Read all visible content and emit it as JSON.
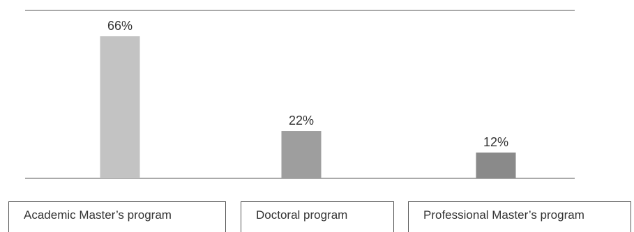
{
  "chart_data": {
    "type": "bar",
    "categories": [
      "Academic Master’s program",
      "Doctoral program",
      "Professional Master’s program"
    ],
    "values": [
      66,
      22,
      12
    ],
    "value_labels": [
      "66%",
      "22%",
      "12%"
    ],
    "ylim": [
      0,
      78
    ],
    "colors": [
      "#c3c3c3",
      "#9e9e9e",
      "#8a8a8a"
    ]
  }
}
